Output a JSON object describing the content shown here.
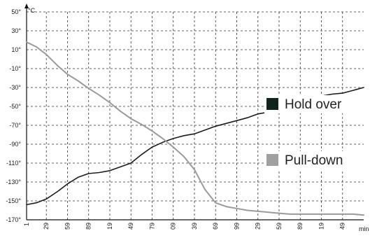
{
  "chart_data": {
    "type": "line",
    "title": "",
    "xlabel": "",
    "ylabel": "",
    "x_unit": "min",
    "y_unit": "°C",
    "y_ticks": [
      "50°",
      "30°",
      "10°",
      "-10°",
      "-30°",
      "-50°",
      "-70°",
      "-90°",
      "-110°",
      "-130°",
      "-150°",
      "-170°"
    ],
    "ylim": [
      -170,
      50
    ],
    "x_ticks": [
      "1",
      "29",
      "59",
      "89",
      "119",
      "149",
      "179",
      "209",
      "239",
      "269",
      "299",
      "329",
      "359",
      "389",
      "419",
      "449"
    ],
    "x_tick_display": [
      "1",
      "29",
      "59",
      "89",
      "19",
      "49",
      "79",
      "09",
      "39",
      "69",
      "99",
      "29",
      "59",
      "89",
      "19",
      "49"
    ],
    "xlim": [
      1,
      479
    ],
    "grid": true,
    "legend_position": "right",
    "series": [
      {
        "name": "Hold over",
        "color": "#1c1c1c",
        "legend_color": "#10241e",
        "x": [
          1,
          15,
          29,
          45,
          59,
          74,
          89,
          104,
          119,
          134,
          149,
          164,
          179,
          194,
          209,
          224,
          239,
          254,
          269,
          284,
          299,
          314,
          329,
          344,
          359,
          374,
          389,
          404,
          419,
          434,
          449,
          464,
          479
        ],
        "y": [
          -154,
          -152,
          -148,
          -140,
          -132,
          -125,
          -121,
          -120,
          -118,
          -114,
          -110,
          -101,
          -93,
          -88,
          -84,
          -81,
          -79,
          -75,
          -71,
          -68,
          -65,
          -62,
          -58,
          -56,
          -53,
          -48,
          -44,
          -41,
          -39,
          -37,
          -36,
          -33,
          -30
        ]
      },
      {
        "name": "Pull-down",
        "color": "#9a9a9a",
        "legend_color": "#a0a0a0",
        "x": [
          1,
          15,
          29,
          45,
          59,
          74,
          89,
          104,
          119,
          134,
          149,
          164,
          179,
          194,
          209,
          224,
          239,
          254,
          269,
          284,
          299,
          314,
          329,
          344,
          359,
          374,
          389,
          404,
          419,
          434,
          449,
          464,
          479
        ],
        "y": [
          18,
          13,
          5,
          -7,
          -16,
          -23,
          -31,
          -38,
          -46,
          -55,
          -63,
          -69,
          -76,
          -84,
          -93,
          -103,
          -117,
          -138,
          -152,
          -156,
          -158,
          -160,
          -161,
          -162,
          -163,
          -164,
          -164,
          -164,
          -164,
          -164,
          -164,
          -164,
          -165
        ]
      }
    ]
  }
}
